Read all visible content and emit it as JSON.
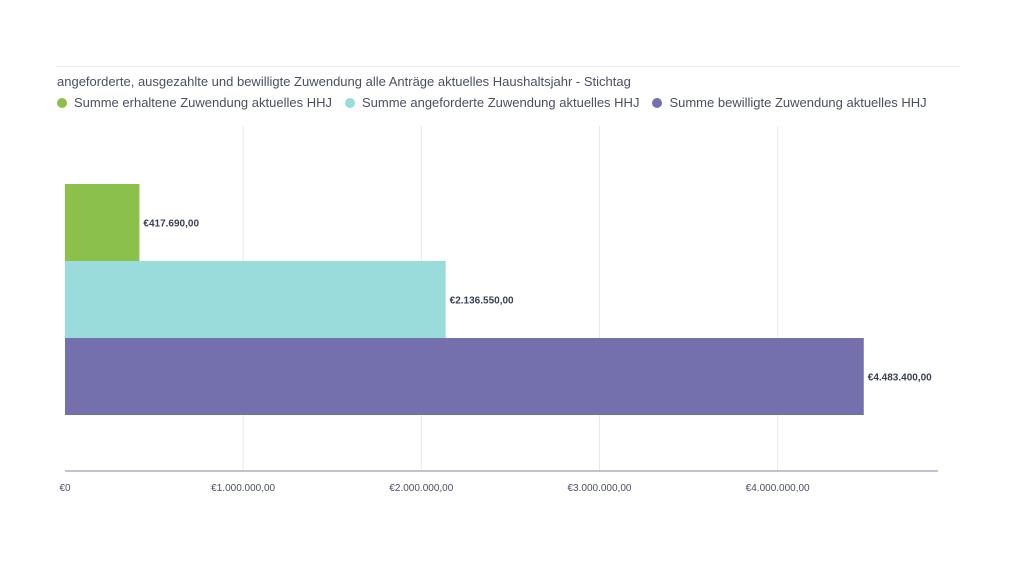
{
  "chart_data": {
    "type": "bar",
    "orientation": "horizontal",
    "title": "angeforderte, ausgezahlte und bewilligte Zuwendung alle Anträge aktuelles Haushaltsjahr - Stichtag",
    "legend_position": "top-left",
    "grid": true,
    "xlim": [
      0,
      4900000
    ],
    "x_ticks": [
      {
        "value": 0,
        "label": "€0"
      },
      {
        "value": 1000000,
        "label": "€1.000.000,00"
      },
      {
        "value": 2000000,
        "label": "€2.000.000,00"
      },
      {
        "value": 3000000,
        "label": "€3.000.000,00"
      },
      {
        "value": 4000000,
        "label": "€4.000.000,00"
      }
    ],
    "series": [
      {
        "name": "Summe erhaltene Zuwendung aktuelles HHJ",
        "color": "#8bc04b",
        "value": 417690,
        "label": "€417.690,00"
      },
      {
        "name": "Summe angeforderte Zuwendung aktuelles HHJ",
        "color": "#9adbdb",
        "value": 2136550,
        "label": "€2.136.550,00"
      },
      {
        "name": "Summe bewilligte Zuwendung aktuelles HHJ",
        "color": "#7370ad",
        "value": 4483400,
        "label": "€4.483.400,00"
      }
    ]
  }
}
